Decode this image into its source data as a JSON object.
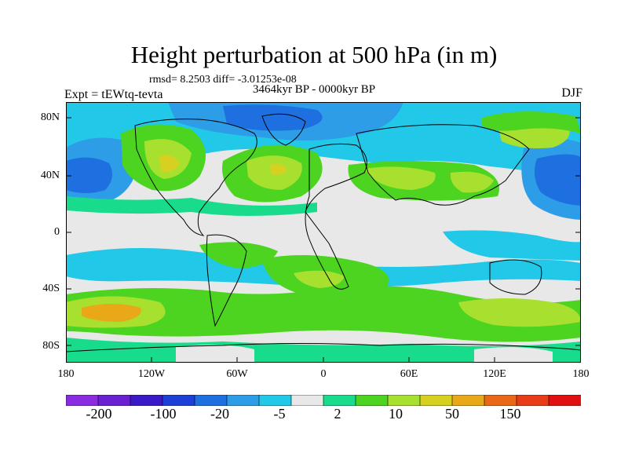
{
  "title": "Height perturbation at 500 hPa (in m)",
  "stats": "rmsd= 8.2503 diff= -3.01253e-08",
  "experiment": "Expt = tEWtq-tevta",
  "period": "3464kyr BP - 0000kyr BP",
  "season": "DJF",
  "lat_labels": [
    "80N",
    "40N",
    "0",
    "40S",
    "80S"
  ],
  "lon_labels": [
    "180",
    "120W",
    "60W",
    "0",
    "60E",
    "120E",
    "180"
  ],
  "colorbar": {
    "colors": [
      "#8a2be2",
      "#6a1fd0",
      "#3c19c8",
      "#1c3fd8",
      "#1e6fe0",
      "#2e9de8",
      "#22c8e8",
      "#e8e8e8",
      "#18dc8c",
      "#4cd420",
      "#a8e030",
      "#d8d020",
      "#e8a818",
      "#e86818",
      "#e83c18",
      "#e01010"
    ],
    "labels": [
      "-200",
      "-100",
      "-20",
      "-5",
      "2",
      "10",
      "50",
      "150"
    ]
  },
  "palette": {
    "neg_strong": "#1e6fe0",
    "neg_mid": "#2e9de8",
    "neg_weak": "#22c8e8",
    "neutral": "#e8e8e8",
    "pos_weak": "#18dc8c",
    "pos_mid": "#4cd420",
    "pos_strong": "#a8e030",
    "pos_max": "#d8d020",
    "pos_peak": "#e8a818"
  }
}
